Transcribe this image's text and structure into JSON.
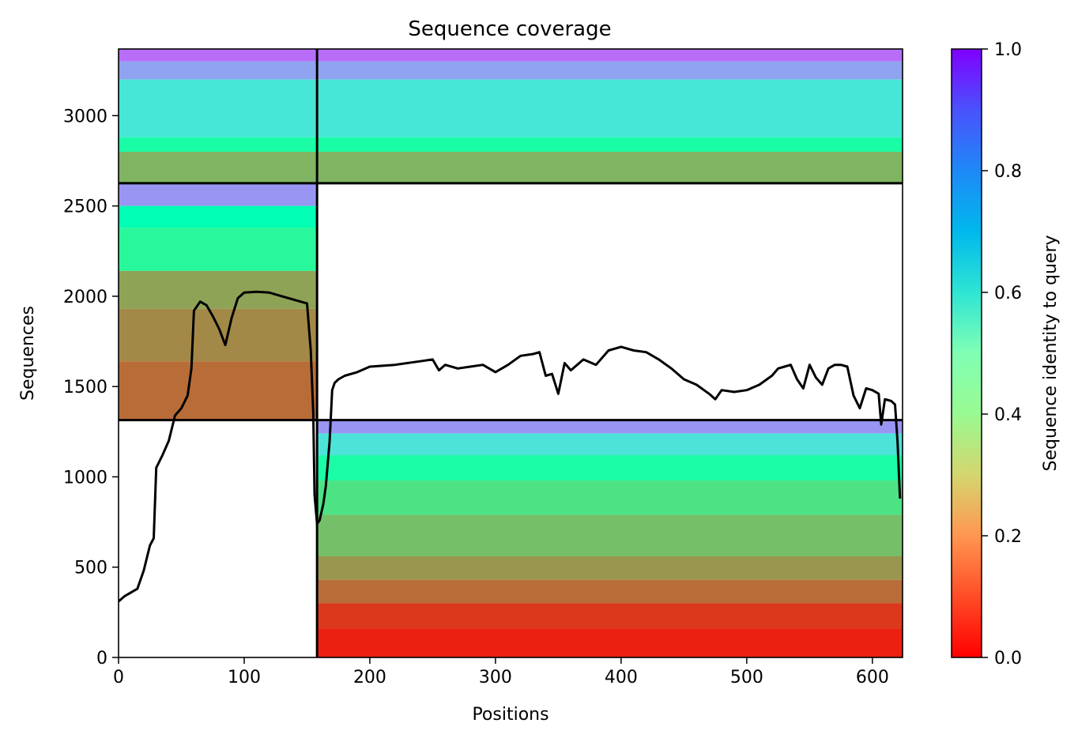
{
  "chart_data": {
    "type": "heatmap",
    "title": "Sequence coverage",
    "xlabel": "Positions",
    "ylabel": "Sequences",
    "xlim": [
      0,
      624
    ],
    "ylim": [
      0,
      3369
    ],
    "x_ticks": [
      0,
      100,
      200,
      300,
      400,
      500,
      600
    ],
    "y_ticks": [
      0,
      500,
      1000,
      1500,
      2000,
      2500,
      3000
    ],
    "grid": false,
    "colorbar": {
      "label": "Sequence identity to query",
      "colormap": "rainbow_r",
      "range": [
        0.0,
        1.0
      ],
      "ticks": [
        "0.0",
        "0.2",
        "0.4",
        "0.6",
        "0.8",
        "1.0"
      ]
    },
    "blocks": [
      {
        "x_range": [
          0,
          158
        ],
        "y_range": [
          1314,
          2626
        ],
        "rows": [
          {
            "y": [
              2500,
              2626
            ],
            "identity": 0.8
          },
          {
            "y": [
              2380,
              2500
            ],
            "identity": 0.5
          },
          {
            "y": [
              2140,
              2380
            ],
            "identity": 0.42
          },
          {
            "y": [
              1930,
              2140
            ],
            "identity": 0.22
          },
          {
            "y": [
              1640,
              1930
            ],
            "identity": 0.18
          },
          {
            "y": [
              1314,
              1640
            ],
            "identity": 0.14
          }
        ]
      },
      {
        "x_range": [
          158,
          624
        ],
        "y_range": [
          0,
          1314
        ],
        "rows": [
          {
            "y": [
              1240,
              1314
            ],
            "identity": 0.8
          },
          {
            "y": [
              1120,
              1240
            ],
            "identity": 0.65
          },
          {
            "y": [
              980,
              1120
            ],
            "identity": 0.45
          },
          {
            "y": [
              790,
              980
            ],
            "identity": 0.35
          },
          {
            "y": [
              560,
              790
            ],
            "identity": 0.27
          },
          {
            "y": [
              430,
              560
            ],
            "identity": 0.2
          },
          {
            "y": [
              300,
              430
            ],
            "identity": 0.14
          },
          {
            "y": [
              160,
              300
            ],
            "identity": 0.07
          },
          {
            "y": [
              0,
              160
            ],
            "identity": 0.04
          }
        ]
      },
      {
        "x_range": [
          0,
          624
        ],
        "y_range": [
          2626,
          3369
        ],
        "rows": [
          {
            "y": [
              3300,
              3369
            ],
            "identity": 0.86
          },
          {
            "y": [
              3200,
              3300
            ],
            "identity": 0.78
          },
          {
            "y": [
              2880,
              3200
            ],
            "identity": 0.64
          },
          {
            "y": [
              2800,
              2880
            ],
            "identity": 0.45
          },
          {
            "y": [
              2626,
              2800
            ],
            "identity": 0.25
          }
        ]
      }
    ],
    "block_boundaries": {
      "x": [
        158
      ],
      "y": [
        1314,
        2626
      ]
    },
    "coverage_line": {
      "x": [
        0,
        5,
        10,
        15,
        20,
        25,
        28,
        30,
        35,
        40,
        45,
        50,
        55,
        58,
        60,
        65,
        70,
        75,
        80,
        85,
        90,
        95,
        100,
        110,
        120,
        130,
        140,
        150,
        153,
        155,
        156,
        158,
        160,
        163,
        165,
        168,
        170,
        172,
        175,
        180,
        190,
        200,
        220,
        240,
        250,
        255,
        260,
        270,
        280,
        290,
        300,
        310,
        320,
        330,
        335,
        340,
        345,
        350,
        355,
        360,
        370,
        380,
        390,
        400,
        410,
        420,
        430,
        440,
        450,
        460,
        470,
        475,
        480,
        490,
        500,
        510,
        520,
        525,
        530,
        535,
        540,
        545,
        550,
        555,
        560,
        565,
        570,
        575,
        580,
        585,
        590,
        595,
        600,
        605,
        607,
        610,
        615,
        618,
        620,
        622
      ],
      "y": [
        310,
        340,
        360,
        380,
        480,
        620,
        660,
        1050,
        1120,
        1200,
        1340,
        1380,
        1450,
        1600,
        1920,
        1970,
        1950,
        1890,
        1820,
        1730,
        1880,
        1990,
        2020,
        2025,
        2020,
        2000,
        1980,
        1960,
        1700,
        1350,
        900,
        740,
        760,
        850,
        950,
        1200,
        1480,
        1520,
        1540,
        1560,
        1580,
        1610,
        1620,
        1640,
        1650,
        1590,
        1620,
        1600,
        1610,
        1620,
        1580,
        1620,
        1670,
        1680,
        1690,
        1560,
        1570,
        1460,
        1630,
        1590,
        1650,
        1620,
        1700,
        1720,
        1700,
        1690,
        1650,
        1600,
        1540,
        1510,
        1460,
        1430,
        1480,
        1470,
        1480,
        1510,
        1560,
        1600,
        1610,
        1620,
        1540,
        1490,
        1620,
        1550,
        1510,
        1600,
        1620,
        1620,
        1610,
        1450,
        1380,
        1490,
        1480,
        1460,
        1290,
        1430,
        1420,
        1400,
        1200,
        880
      ]
    }
  }
}
